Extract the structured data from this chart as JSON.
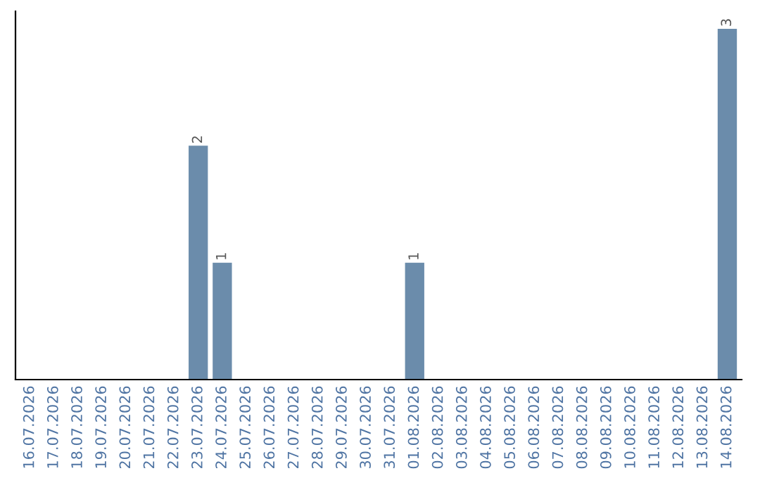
{
  "chart_data": {
    "type": "bar",
    "categories": [
      "16.07.2026",
      "17.07.2026",
      "18.07.2026",
      "19.07.2026",
      "20.07.2026",
      "21.07.2026",
      "22.07.2026",
      "23.07.2026",
      "24.07.2026",
      "25.07.2026",
      "26.07.2026",
      "27.07.2026",
      "28.07.2026",
      "29.07.2026",
      "30.07.2026",
      "31.07.2026",
      "01.08.2026",
      "02.08.2026",
      "03.08.2026",
      "04.08.2026",
      "05.08.2026",
      "06.08.2026",
      "07.08.2026",
      "08.08.2026",
      "09.08.2026",
      "10.08.2026",
      "11.08.2026",
      "12.08.2026",
      "13.08.2026",
      "14.08.2026"
    ],
    "values": [
      0,
      0,
      0,
      0,
      0,
      0,
      0,
      2,
      1,
      0,
      0,
      0,
      0,
      0,
      0,
      0,
      1,
      0,
      0,
      0,
      0,
      0,
      0,
      0,
      0,
      0,
      0,
      0,
      0,
      3
    ],
    "value_labels": [
      null,
      null,
      null,
      null,
      null,
      null,
      null,
      "2",
      "1",
      null,
      null,
      null,
      null,
      null,
      null,
      null,
      "1",
      null,
      null,
      null,
      null,
      null,
      null,
      null,
      null,
      null,
      null,
      null,
      null,
      "3"
    ],
    "color": "#6b8cab",
    "ylim": [
      0,
      3.15
    ],
    "tick_labels": "x",
    "grid": false,
    "legend": false
  }
}
